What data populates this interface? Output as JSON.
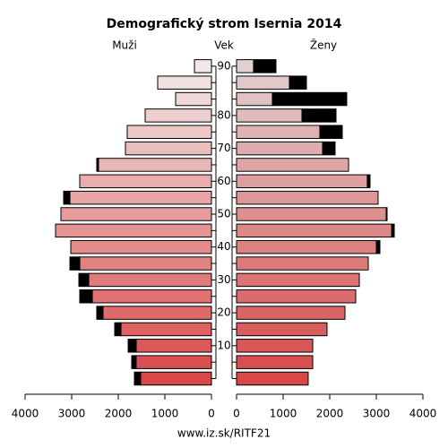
{
  "chart_data": {
    "type": "pyramid",
    "title": "Demografický strom Isernia 2014",
    "y_label": "Vek",
    "footer": "www.iz.sk/RITF21",
    "categories": [
      null,
      null,
      "10",
      null,
      "20",
      null,
      "30",
      null,
      "40",
      null,
      "50",
      null,
      "60",
      null,
      "70",
      null,
      "80",
      null,
      null,
      "90"
    ],
    "series": [
      {
        "name": "Muži",
        "color": "#d94848",
        "values": [
          1654,
          1712,
          1788,
          2077,
          2462,
          2827,
          2846,
          3038,
          3019,
          3346,
          3231,
          3173,
          2827,
          2462,
          1846,
          1808,
          1423,
          769,
          1154,
          365
        ],
        "extra": [
          135,
          96,
          173,
          135,
          135,
          270,
          212,
          212,
          0,
          0,
          0,
          135,
          0,
          38,
          0,
          0,
          0,
          0,
          0,
          0
        ]
      },
      {
        "name": "Ženy",
        "color": "#d94848",
        "values": [
          1538,
          1635,
          1635,
          1942,
          2327,
          2558,
          2635,
          2827,
          3077,
          3385,
          3231,
          3038,
          2865,
          2404,
          2115,
          2269,
          2135,
          2365,
          1500,
          846
        ],
        "extra": [
          0,
          0,
          0,
          0,
          0,
          0,
          0,
          0,
          77,
          58,
          19,
          0,
          58,
          0,
          269,
          481,
          731,
          1596,
          365,
          481
        ]
      }
    ],
    "xlim": [
      0,
      4000
    ],
    "xticks": [
      0,
      1000,
      2000,
      3000,
      4000
    ]
  }
}
